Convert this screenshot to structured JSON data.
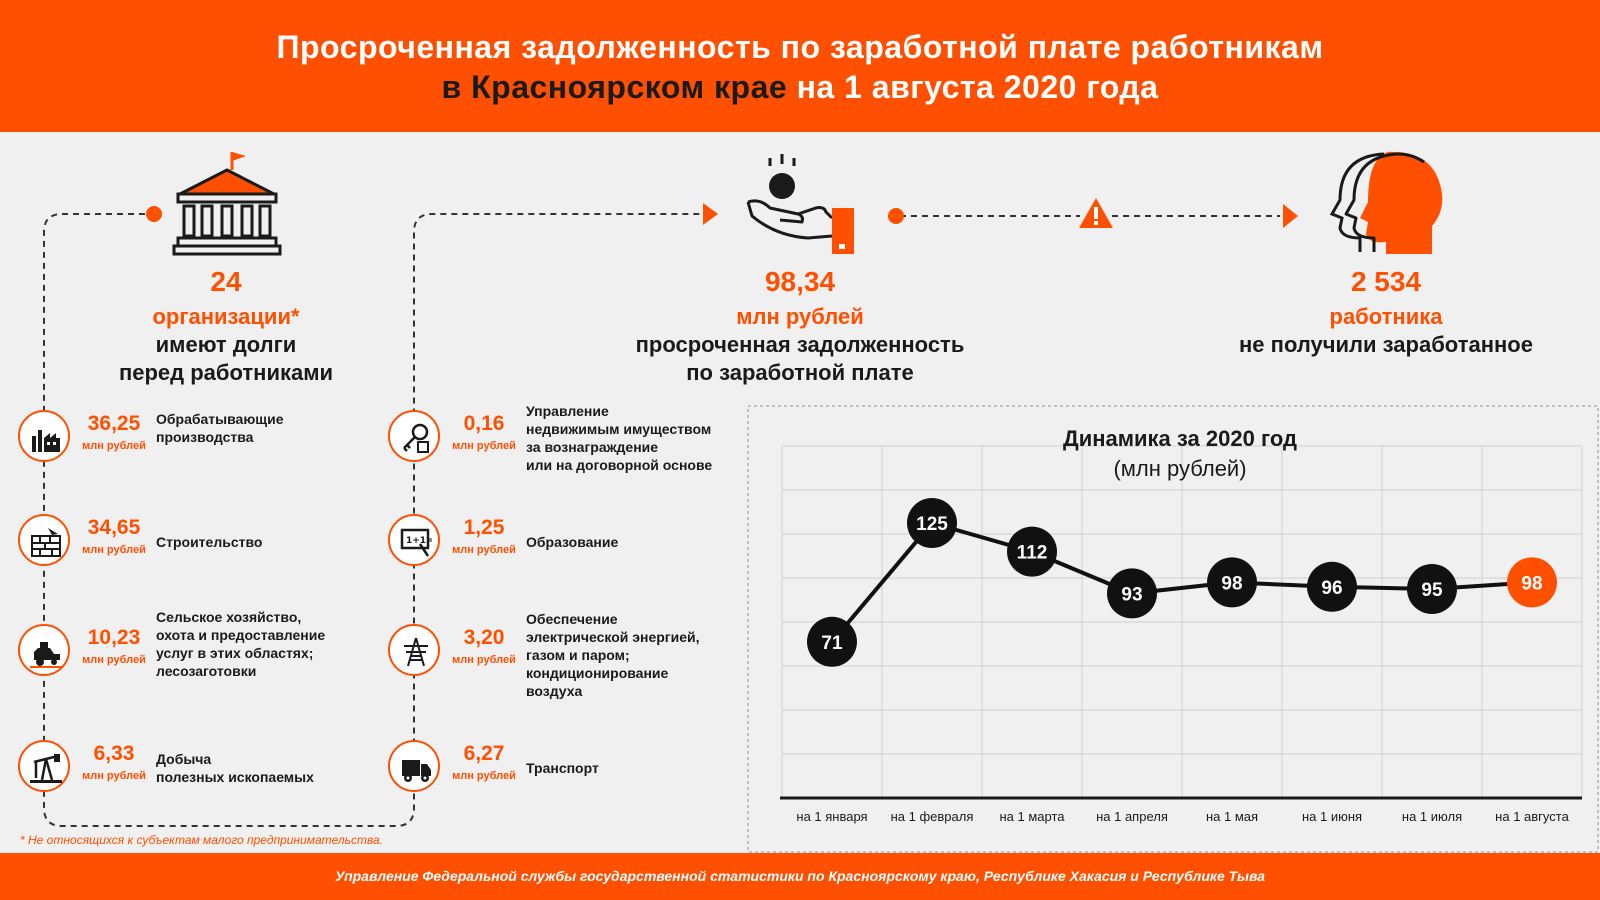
{
  "header": {
    "line1": "Просроченная задолженность по заработной плате работникам",
    "line2_dark": "в Красноярском крае",
    "line2_light": " на 1 августа 2020 года"
  },
  "summary": {
    "orgs": {
      "value": "24",
      "unit": "организации*",
      "text1": "имеют долги",
      "text2": "перед работниками"
    },
    "debt": {
      "value": "98,34",
      "unit": "млн рублей",
      "text1": "просроченная задолженность",
      "text2": "по заработной плате"
    },
    "workers": {
      "value": "2 534",
      "unit": "работника",
      "text1": "не получили заработанное"
    }
  },
  "industries": [
    {
      "value": "36,25",
      "unit": "млн рублей",
      "label": [
        "Обрабатывающие",
        "производства"
      ],
      "icon": "factory-icon"
    },
    {
      "value": "34,65",
      "unit": "млн рублей",
      "label": [
        "Строительство"
      ],
      "icon": "bricks-icon"
    },
    {
      "value": "10,23",
      "unit": "млн рублей",
      "label": [
        "Сельское хозяйство,",
        "охота и предоставление",
        "услуг в этих областях;",
        "лесозаготовки"
      ],
      "icon": "harvester-icon"
    },
    {
      "value": "6,33",
      "unit": "млн рублей",
      "label": [
        "Добыча",
        "полезных ископаемых"
      ],
      "icon": "oil-pump-icon"
    },
    {
      "value": "0,16",
      "unit": "млн рублей",
      "label": [
        "Управление",
        "недвижимым имуществом",
        "за вознаграждение",
        "или на договорной основе"
      ],
      "icon": "keys-icon"
    },
    {
      "value": "1,25",
      "unit": "млн рублей",
      "label": [
        "Образование"
      ],
      "icon": "blackboard-icon"
    },
    {
      "value": "3,20",
      "unit": "млн рублей",
      "label": [
        "Обеспечение",
        "электрической энергией,",
        "газом и паром;",
        "кондиционирование",
        "воздуха"
      ],
      "icon": "power-tower-icon"
    },
    {
      "value": "6,27",
      "unit": "млн рублей",
      "label": [
        "Транспорт"
      ],
      "icon": "truck-icon"
    }
  ],
  "footnote": "* Не относящихся к субъектам малого предпринимательства.",
  "footer": "Управление Федеральной службы государственной статистики по Красноярскому краю, Республике Хакасия и Республике Тыва",
  "chart_data": {
    "type": "line",
    "title": "Динамика за 2020 год",
    "subtitle": "(млн рублей)",
    "categories": [
      "на 1 января",
      "на 1 февраля",
      "на 1 марта",
      "на 1 апреля",
      "на 1 мая",
      "на 1 июня",
      "на 1 июля",
      "на 1 августа"
    ],
    "values": [
      71,
      125,
      112,
      93,
      98,
      96,
      95,
      98
    ],
    "ylim": [
      0,
      160
    ],
    "grid": true,
    "highlight_last": true,
    "colors": {
      "line": "#111111",
      "marker": "#111111",
      "highlight": "#ff4f00",
      "grid": "#d0d0d0"
    }
  },
  "colors": {
    "accent": "#ff4f00",
    "dark": "#1a1a1a",
    "background": "#f0f0f0"
  }
}
